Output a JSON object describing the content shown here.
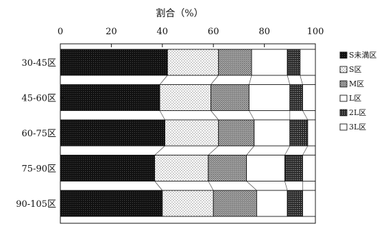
{
  "chart_data": {
    "type": "bar",
    "orientation": "horizontal",
    "stacked": true,
    "title": "割合（%）",
    "xlim": [
      0,
      100
    ],
    "xticks": [
      "0",
      "20",
      "40",
      "60",
      "80",
      "100"
    ],
    "categories": [
      "30-45区",
      "45-60区",
      "60-75区",
      "75-90区",
      "90-105区"
    ],
    "series": [
      {
        "name": "S未満区",
        "pattern": "black",
        "values": [
          42,
          39,
          41,
          37,
          40
        ]
      },
      {
        "name": "S区",
        "pattern": "fine-dots",
        "values": [
          20,
          20,
          21,
          21,
          20
        ]
      },
      {
        "name": "M区",
        "pattern": "dense-dots",
        "values": [
          13,
          15,
          14,
          15,
          17
        ]
      },
      {
        "name": "L区",
        "pattern": "white",
        "values": [
          14,
          16,
          14,
          15,
          12
        ]
      },
      {
        "name": "2L区",
        "pattern": "dark-dots",
        "values": [
          5,
          5,
          7,
          7,
          6
        ]
      },
      {
        "name": "3L区",
        "pattern": "white",
        "values": [
          6,
          5,
          3,
          5,
          5
        ]
      }
    ],
    "grid": false,
    "legend_position": "right",
    "connector_lines": true
  }
}
